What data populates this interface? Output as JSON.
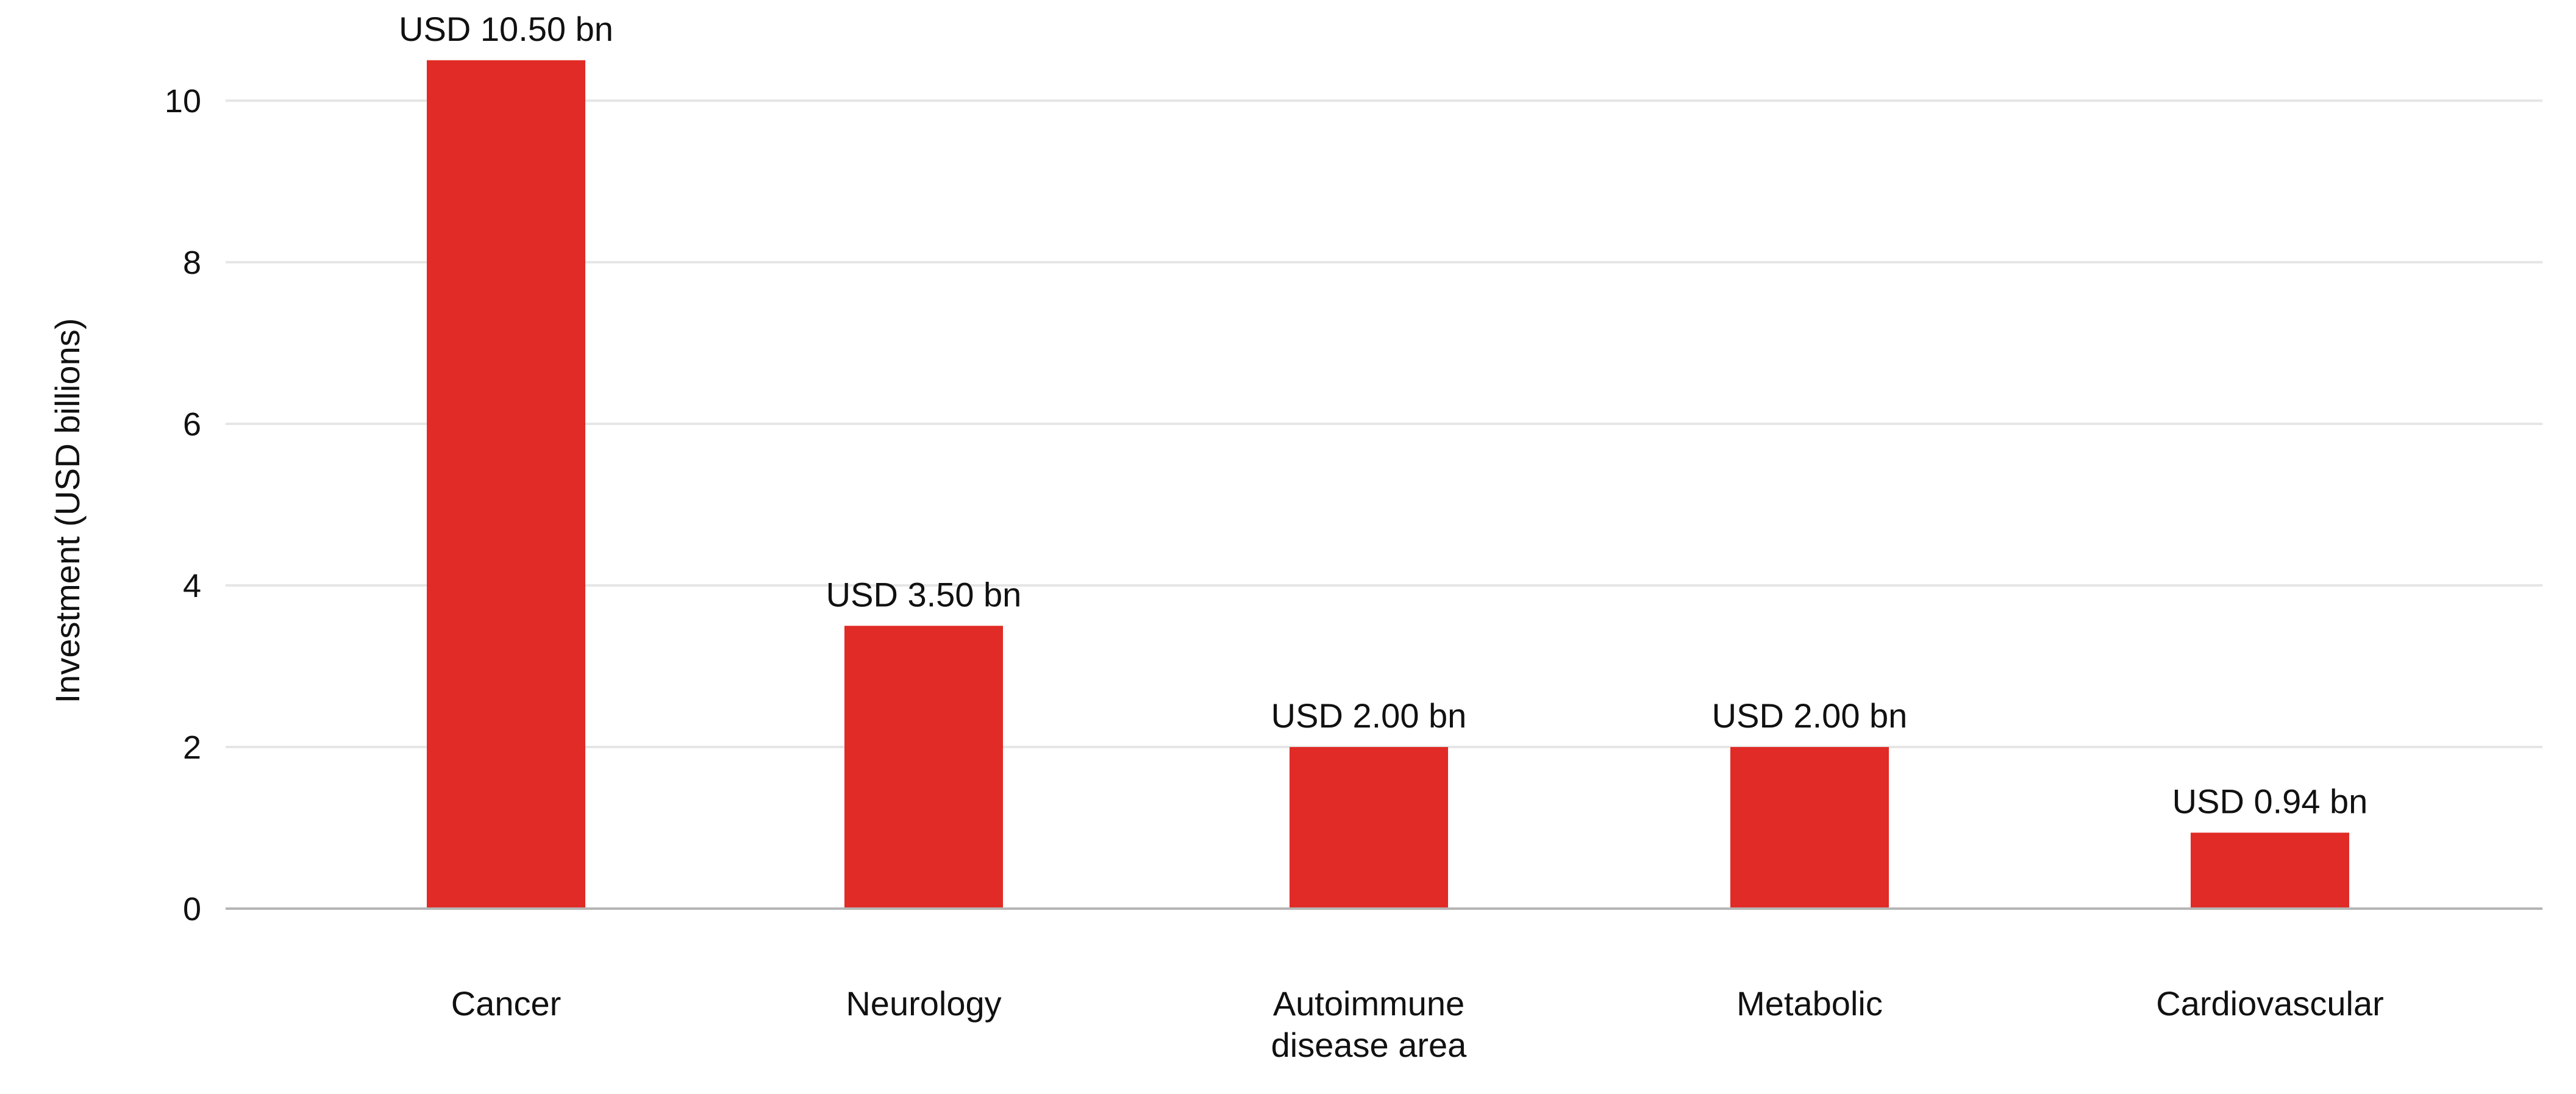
{
  "chart_data": {
    "type": "bar",
    "categories": [
      "Cancer",
      "Neurology",
      "Autoimmune disease area",
      "Metabolic",
      "Cardiovascular"
    ],
    "category_lines": [
      [
        "Cancer"
      ],
      [
        "Neurology"
      ],
      [
        "Autoimmune",
        "disease area"
      ],
      [
        "Metabolic"
      ],
      [
        "Cardiovascular"
      ]
    ],
    "values": [
      10.5,
      3.5,
      2.0,
      2.0,
      0.94
    ],
    "data_labels": [
      "USD 10.50 bn",
      "USD 3.50 bn",
      "USD 2.00 bn",
      "USD 2.00 bn",
      "USD 0.94 bn"
    ],
    "title": "",
    "xlabel": "",
    "ylabel": "Investment (USD billions)",
    "ylim": [
      0,
      10
    ],
    "yticks": [
      0,
      2,
      4,
      6,
      8,
      10
    ],
    "grid": true,
    "legend": "none",
    "bar_color": "#e12b26"
  }
}
